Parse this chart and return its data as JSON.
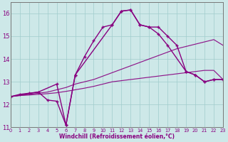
{
  "bg_color": "#cde8e8",
  "grid_color": "#a0cccc",
  "line_color": "#880080",
  "xlabel": "Windchill (Refroidissement éolien,°C)",
  "xlim": [
    0,
    23
  ],
  "ylim": [
    11,
    16.5
  ],
  "xticks": [
    0,
    1,
    2,
    3,
    4,
    5,
    6,
    7,
    8,
    9,
    10,
    11,
    12,
    13,
    14,
    15,
    16,
    17,
    18,
    19,
    20,
    21,
    22,
    23
  ],
  "yticks": [
    11,
    12,
    13,
    14,
    15,
    16
  ],
  "curves": [
    {
      "x": [
        0,
        1,
        2,
        3,
        4,
        5,
        6,
        7,
        8,
        9,
        10,
        11,
        12,
        13,
        14,
        15,
        16,
        17,
        18,
        19,
        20,
        21,
        22,
        23
      ],
      "y": [
        12.35,
        12.45,
        12.5,
        12.55,
        12.2,
        12.15,
        11.1,
        13.3,
        14.1,
        14.8,
        15.4,
        15.5,
        16.1,
        16.15,
        15.5,
        15.4,
        15.4,
        15.0,
        14.6,
        13.45,
        13.3,
        13.0,
        13.1,
        13.1
      ],
      "marker": true,
      "lw": 1.0,
      "alpha": 1.0
    },
    {
      "x": [
        0,
        3,
        5,
        6,
        7,
        11,
        12,
        13,
        14,
        15,
        16,
        17,
        19,
        20,
        21,
        22,
        23
      ],
      "y": [
        12.35,
        12.55,
        12.9,
        11.1,
        13.3,
        15.5,
        16.1,
        16.15,
        15.5,
        15.4,
        15.1,
        14.6,
        13.45,
        13.3,
        13.0,
        13.1,
        13.1
      ],
      "marker": true,
      "lw": 1.0,
      "alpha": 1.0
    },
    {
      "x": [
        0,
        1,
        2,
        3,
        4,
        5,
        6,
        7,
        8,
        9,
        10,
        11,
        12,
        13,
        14,
        15,
        16,
        17,
        18,
        19,
        20,
        21,
        22,
        23
      ],
      "y": [
        12.35,
        12.4,
        12.45,
        12.5,
        12.55,
        12.65,
        12.75,
        12.9,
        13.0,
        13.1,
        13.25,
        13.4,
        13.55,
        13.7,
        13.85,
        14.0,
        14.15,
        14.3,
        14.45,
        14.55,
        14.65,
        14.75,
        14.85,
        14.6
      ],
      "marker": false,
      "lw": 0.85,
      "alpha": 0.9
    },
    {
      "x": [
        0,
        1,
        2,
        3,
        4,
        5,
        6,
        7,
        8,
        9,
        10,
        11,
        12,
        13,
        14,
        15,
        16,
        17,
        18,
        19,
        20,
        21,
        22,
        23
      ],
      "y": [
        12.35,
        12.4,
        12.42,
        12.45,
        12.48,
        12.52,
        12.58,
        12.65,
        12.72,
        12.8,
        12.9,
        13.0,
        13.05,
        13.1,
        13.15,
        13.2,
        13.25,
        13.3,
        13.35,
        13.4,
        13.45,
        13.5,
        13.5,
        13.1
      ],
      "marker": false,
      "lw": 0.85,
      "alpha": 0.9
    }
  ]
}
